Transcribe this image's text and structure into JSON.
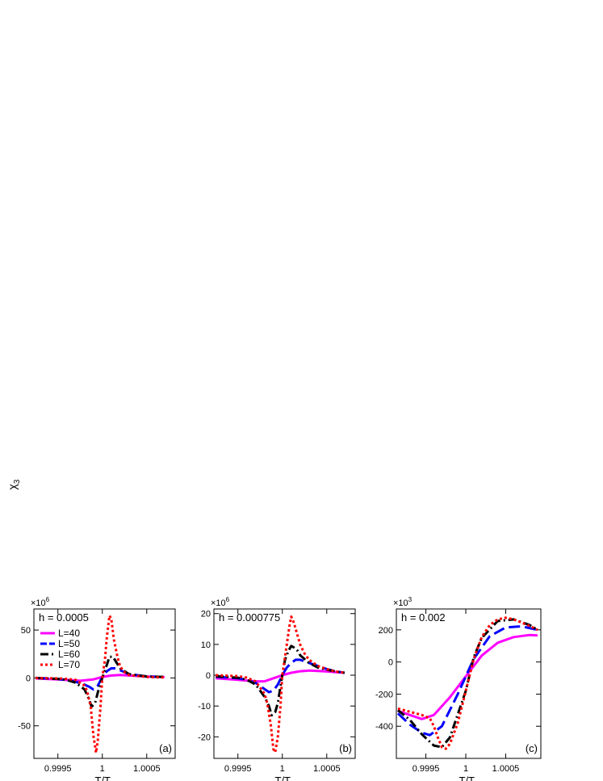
{
  "figure": {
    "ylabel_main": "χ",
    "ylabel_sub": "3"
  },
  "chart_data": [
    {
      "type": "line",
      "panel_label": "(a)",
      "annotation": "h = 0.0005",
      "multiplier_base": "×10",
      "multiplier_exp": "6",
      "xlabel_main": "T/T",
      "xlabel_sub": "c",
      "xlim": [
        0.99923,
        1.00082
      ],
      "ylim": [
        -84,
        72
      ],
      "xticks": [
        0.9995,
        1,
        1.0005
      ],
      "xtick_labels": [
        "0.9995",
        "1",
        "1.0005"
      ],
      "yticks": [
        -50,
        0,
        50
      ],
      "ytick_labels": [
        "-50",
        "0",
        "50"
      ],
      "legend": [
        {
          "label": "L=40",
          "series": 0
        },
        {
          "label": "L=50",
          "series": 1
        },
        {
          "label": "L=60",
          "series": 2
        },
        {
          "label": "L=70",
          "series": 3
        }
      ],
      "series": [
        {
          "name": "L=40",
          "color": "#ff00ff",
          "dash": "solid",
          "x": [
            0.99925,
            0.9995,
            0.99965,
            0.99975,
            0.9999,
            1.0,
            1.0001,
            1.0002,
            1.0003,
            1.0005,
            1.0007
          ],
          "y": [
            -0.5,
            -1.5,
            -2.5,
            -3,
            -1.5,
            1,
            2.5,
            3,
            2.5,
            1.5,
            1
          ]
        },
        {
          "name": "L=50",
          "color": "#0000ff",
          "dash": "dashed",
          "x": [
            0.99925,
            0.9995,
            0.9997,
            0.9998,
            0.99985,
            0.9999,
            0.99995,
            1.0,
            1.00005,
            1.0001,
            1.00015,
            1.0002,
            1.0003,
            1.0005,
            1.0007
          ],
          "y": [
            0,
            -1,
            -4,
            -7,
            -9,
            -12,
            -8,
            1,
            7,
            10,
            10,
            8,
            4,
            1.5,
            1
          ]
        },
        {
          "name": "L=60",
          "color": "#000000",
          "dash": "dashdot",
          "x": [
            0.99925,
            0.9995,
            0.9996,
            0.9997,
            0.9998,
            0.99985,
            0.99988,
            0.99992,
            0.99995,
            1.0,
            1.00003,
            1.00008,
            1.00012,
            1.00016,
            1.0002,
            1.0003,
            1.0005,
            1.0007
          ],
          "y": [
            0,
            -1,
            -2,
            -5,
            -12,
            -22,
            -30,
            -26,
            -15,
            0,
            8,
            22,
            22,
            16,
            10,
            4,
            1.5,
            1
          ]
        },
        {
          "name": "L=70",
          "color": "#ff0000",
          "dash": "dotted",
          "x": [
            0.99925,
            0.9995,
            0.9996,
            0.9997,
            0.9998,
            0.99983,
            0.99987,
            0.9999,
            0.99993,
            0.99995,
            0.99998,
            1.0,
            1.00003,
            1.00005,
            1.00008,
            1.0001,
            1.00013,
            1.00017,
            1.0002,
            1.00025,
            1.0003,
            1.0005,
            1.0007
          ],
          "y": [
            0,
            -0.5,
            -1,
            -2,
            -8,
            -14,
            -30,
            -60,
            -78,
            -65,
            -30,
            0,
            20,
            42,
            65,
            62,
            40,
            22,
            12,
            6,
            3,
            1,
            0.5
          ]
        }
      ]
    },
    {
      "type": "line",
      "panel_label": "(b)",
      "annotation": "h = 0.000775",
      "multiplier_base": "×10",
      "multiplier_exp": "6",
      "xlabel_main": "T/T",
      "xlabel_sub": "c",
      "xlim": [
        0.99923,
        1.00082
      ],
      "ylim": [
        -27,
        21.5
      ],
      "xticks": [
        0.9995,
        1,
        1.0005
      ],
      "xtick_labels": [
        "0.9995",
        "1",
        "1.0005"
      ],
      "yticks": [
        -20,
        -10,
        0,
        10,
        20
      ],
      "ytick_labels": [
        "-20",
        "-10",
        "0",
        "10",
        "20"
      ],
      "series": [
        {
          "name": "L=40",
          "color": "#ff00ff",
          "dash": "solid",
          "x": [
            0.99925,
            0.9995,
            0.9997,
            0.9998,
            0.9999,
            1.0,
            1.0001,
            1.0002,
            1.0003,
            1.0004,
            1.0005,
            1.0006,
            1.0007
          ],
          "y": [
            -1,
            -1.5,
            -2,
            -2,
            -1,
            0,
            0.8,
            1.3,
            1.5,
            1.4,
            1.2,
            1,
            0.8
          ]
        },
        {
          "name": "L=50",
          "color": "#0000ff",
          "dash": "dashed",
          "x": [
            0.99925,
            0.9995,
            0.9996,
            0.9997,
            0.9998,
            0.99985,
            0.9999,
            0.99995,
            1.0,
            1.00005,
            1.0001,
            1.00015,
            1.0002,
            1.0003,
            1.0004,
            1.0005,
            1.0006,
            1.0007
          ],
          "y": [
            -0.5,
            -1,
            -1.5,
            -2.5,
            -4.5,
            -5.5,
            -5,
            -3,
            0,
            2.5,
            4,
            5,
            5,
            4,
            3,
            2,
            1.3,
            0.8
          ]
        },
        {
          "name": "L=60",
          "color": "#000000",
          "dash": "dashdot",
          "x": [
            0.99925,
            0.9995,
            0.9996,
            0.9997,
            0.9998,
            0.99985,
            0.99988,
            0.99992,
            0.99995,
            1.0,
            1.00003,
            1.00007,
            1.0001,
            1.00013,
            1.00017,
            1.0002,
            1.0003,
            1.0004,
            1.0005,
            1.0006,
            1.0007
          ],
          "y": [
            -0.3,
            -0.8,
            -1.5,
            -3,
            -7,
            -10,
            -13,
            -12,
            -9,
            0,
            5,
            8,
            9.5,
            9,
            8,
            6.5,
            4,
            2.5,
            1.8,
            1.2,
            0.8
          ]
        },
        {
          "name": "L=70",
          "color": "#ff0000",
          "dash": "dotted",
          "x": [
            0.99925,
            0.9995,
            0.9996,
            0.9997,
            0.9998,
            0.99983,
            0.99987,
            0.9999,
            0.99992,
            0.99995,
            0.99998,
            1.0,
            1.00003,
            1.00005,
            1.00008,
            1.0001,
            1.00013,
            1.00017,
            1.0002,
            1.00025,
            1.0003,
            1.0004,
            1.0005,
            1.0006,
            1.0007
          ],
          "y": [
            0,
            -0.3,
            -0.8,
            -2,
            -6,
            -9,
            -16,
            -24,
            -25,
            -20,
            -10,
            0,
            6,
            10,
            16,
            19,
            17,
            13,
            10,
            7,
            5,
            3,
            2,
            1.2,
            0.8
          ]
        }
      ]
    },
    {
      "type": "line",
      "panel_label": "(c)",
      "annotation": "h = 0.002",
      "multiplier_base": "×10",
      "multiplier_exp": "3",
      "xlabel_main": "T/T",
      "xlabel_sub": "c",
      "xlim": [
        0.99913,
        1.00094
      ],
      "ylim": [
        -600,
        330
      ],
      "xticks": [
        0.9995,
        1,
        1.0005
      ],
      "xtick_labels": [
        "0.9995",
        "1",
        "1.0005"
      ],
      "yticks": [
        -400,
        -200,
        0,
        200
      ],
      "ytick_labels": [
        "-400",
        "-200",
        "0",
        "200"
      ],
      "series": [
        {
          "name": "L=40",
          "color": "#ff00ff",
          "dash": "solid",
          "x": [
            0.99915,
            0.9993,
            0.99945,
            0.9996,
            0.9998,
            1.0,
            1.0002,
            1.0004,
            1.0006,
            1.0008,
            1.0009
          ],
          "y": [
            -305,
            -330,
            -355,
            -330,
            -220,
            -90,
            40,
            120,
            155,
            168,
            165
          ]
        },
        {
          "name": "L=50",
          "color": "#0000ff",
          "dash": "dashed",
          "x": [
            0.99915,
            0.9993,
            0.99945,
            0.99955,
            0.9997,
            0.9999,
            1.0001,
            1.0003,
            1.0005,
            1.0007,
            1.0009
          ],
          "y": [
            -320,
            -390,
            -440,
            -455,
            -400,
            -200,
            20,
            160,
            215,
            222,
            200
          ]
        },
        {
          "name": "L=60",
          "color": "#000000",
          "dash": "dashdot",
          "x": [
            0.99915,
            0.9993,
            0.99945,
            0.9996,
            0.9997,
            0.9998,
            1.0,
            1.0001,
            1.0002,
            1.0004,
            1.0006,
            1.0008,
            1.0009
          ],
          "y": [
            -300,
            -360,
            -450,
            -520,
            -530,
            -470,
            -180,
            30,
            150,
            255,
            265,
            230,
            200
          ]
        },
        {
          "name": "L=70",
          "color": "#ff0000",
          "dash": "dotted",
          "x": [
            0.99915,
            0.9993,
            0.99945,
            0.99955,
            0.9996,
            0.99965,
            0.9997,
            0.99975,
            0.9998,
            0.9999,
            1.0,
            1.0001,
            1.0002,
            1.0003,
            1.0004,
            1.0005,
            1.0006,
            1.0007,
            1.0008,
            1.0009
          ],
          "y": [
            -290,
            -310,
            -330,
            -350,
            -400,
            -470,
            -530,
            -540,
            -510,
            -380,
            -180,
            20,
            155,
            230,
            265,
            275,
            265,
            245,
            225,
            200
          ]
        }
      ]
    }
  ]
}
